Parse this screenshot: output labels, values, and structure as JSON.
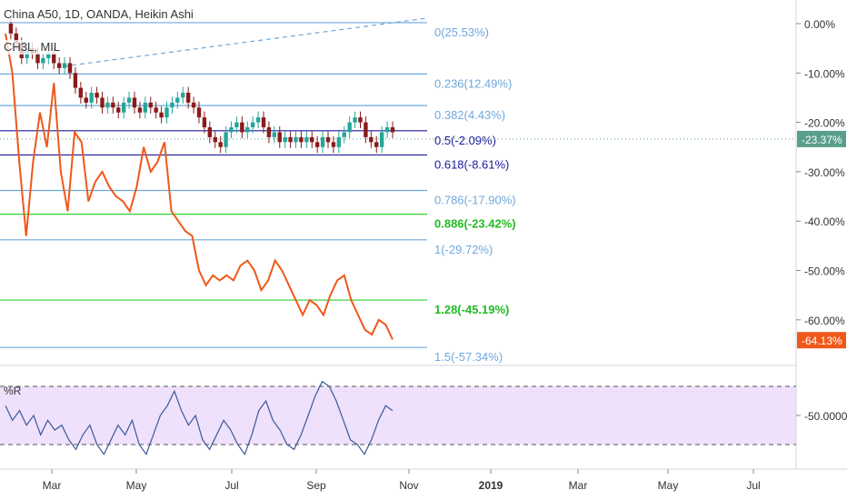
{
  "chart_title": "China A50, 1D, OANDA, Heikin Ashi",
  "secondary_symbol": "CH3L, MIL",
  "indicator_label": "%R",
  "colors": {
    "candle_up": "#26a69a",
    "candle_down": "#8b1a1a",
    "compare_line": "#f0581a",
    "fib_blue": "#6fa8dc",
    "fib_dark": "#1a1aa0",
    "fib_green": "#33cc33",
    "wr_line": "#3a5a9a",
    "wr_band": "#efe0fb",
    "price_tag_current": "#5a9e8c",
    "price_tag_compare": "#f0581a"
  },
  "chart_data": [
    {
      "type": "line",
      "pane": "main",
      "y_unit": "percent",
      "ylim": [
        -66,
        4
      ],
      "y_ticks": [
        "0.00%",
        "-10.00%",
        "-20.00%",
        "-30.00%",
        "-40.00%",
        "-50.00%",
        "-60.00%"
      ],
      "x_ticks": [
        "Mar",
        "May",
        "Jul",
        "Sep",
        "Nov",
        "2019",
        "Mar",
        "May",
        "Jul"
      ],
      "current_labels": [
        "-23.37%",
        "-64.13%"
      ],
      "fib_levels": [
        {
          "label": "0(25.53%)",
          "value": 0.2,
          "color": "blue"
        },
        {
          "label": "0.236(12.49%)",
          "value": -10.2,
          "color": "blue"
        },
        {
          "label": "0.382(4.43%)",
          "value": -16.6,
          "color": "blue"
        },
        {
          "label": "0.5(-2.09%)",
          "value": -21.7,
          "color": "dark"
        },
        {
          "label": "0.618(-8.61%)",
          "value": -26.6,
          "color": "dark"
        },
        {
          "label": "0.786(-17.90%)",
          "value": -33.8,
          "color": "blue"
        },
        {
          "label": "0.886(-23.42%)",
          "value": -38.6,
          "color": "green"
        },
        {
          "label": "1(-29.72%)",
          "value": -43.8,
          "color": "blue"
        },
        {
          "label": "1.28(-45.19%)",
          "value": -56.0,
          "color": "green"
        },
        {
          "label": "1.5(-57.34%)",
          "value": -65.6,
          "color": "blue"
        }
      ],
      "series": [
        {
          "name": "China A50",
          "style": "heikin-ashi",
          "values": [
            0,
            -2,
            -4,
            -7,
            -5,
            -6,
            -8,
            -7,
            -6,
            -8,
            -9,
            -8,
            -10,
            -13,
            -15,
            -16,
            -14,
            -15,
            -17,
            -16,
            -17,
            -18,
            -16,
            -15,
            -17,
            -18,
            -16,
            -17,
            -18,
            -19,
            -17,
            -16,
            -15,
            -14,
            -16,
            -17,
            -19,
            -21,
            -23,
            -24,
            -25,
            -22,
            -21,
            -20,
            -22,
            -21,
            -20,
            -19,
            -21,
            -23,
            -22,
            -24,
            -23,
            -24,
            -23,
            -24,
            -23,
            -24,
            -25,
            -23,
            -24,
            -25,
            -23,
            -22,
            -20,
            -19,
            -20,
            -23,
            -24,
            -25,
            -22,
            -21,
            -22
          ],
          "x_from": "Feb 5",
          "x_to": "Oct 26"
        },
        {
          "name": "CH3L, MIL",
          "values": [
            -2,
            -10,
            -28,
            -43,
            -28,
            -18,
            -25,
            -12,
            -30,
            -38,
            -22,
            -24,
            -36,
            -32,
            -30,
            -33,
            -35,
            -36,
            -38,
            -33,
            -25,
            -30,
            -28,
            -24,
            -38,
            -40,
            -42,
            -43,
            -50,
            -53,
            -51,
            -52,
            -51,
            -52,
            -49,
            -48,
            -50,
            -54,
            -52,
            -48,
            -50,
            -53,
            -56,
            -59,
            -56,
            -57,
            -59,
            -55,
            -52,
            -51,
            -56,
            -59,
            -62,
            -63,
            -60,
            -61,
            -64
          ],
          "x_from": "Feb 5",
          "x_to": "Oct 26"
        }
      ]
    },
    {
      "type": "line",
      "pane": "indicator",
      "title": "%R",
      "ylim": [
        -100,
        0
      ],
      "band": [
        -20,
        -80
      ],
      "y_ticks": [
        "-50.0000"
      ],
      "series": [
        {
          "name": "%R",
          "values": [
            -40,
            -55,
            -45,
            -60,
            -50,
            -70,
            -55,
            -65,
            -60,
            -75,
            -85,
            -70,
            -60,
            -80,
            -90,
            -75,
            -60,
            -70,
            -55,
            -80,
            -90,
            -70,
            -50,
            -40,
            -25,
            -45,
            -60,
            -50,
            -75,
            -85,
            -70,
            -55,
            -65,
            -80,
            -90,
            -70,
            -45,
            -35,
            -55,
            -65,
            -80,
            -85,
            -70,
            -50,
            -30,
            -15,
            -20,
            -35,
            -55,
            -75,
            -80,
            -90,
            -75,
            -55,
            -40,
            -45
          ]
        }
      ]
    }
  ]
}
